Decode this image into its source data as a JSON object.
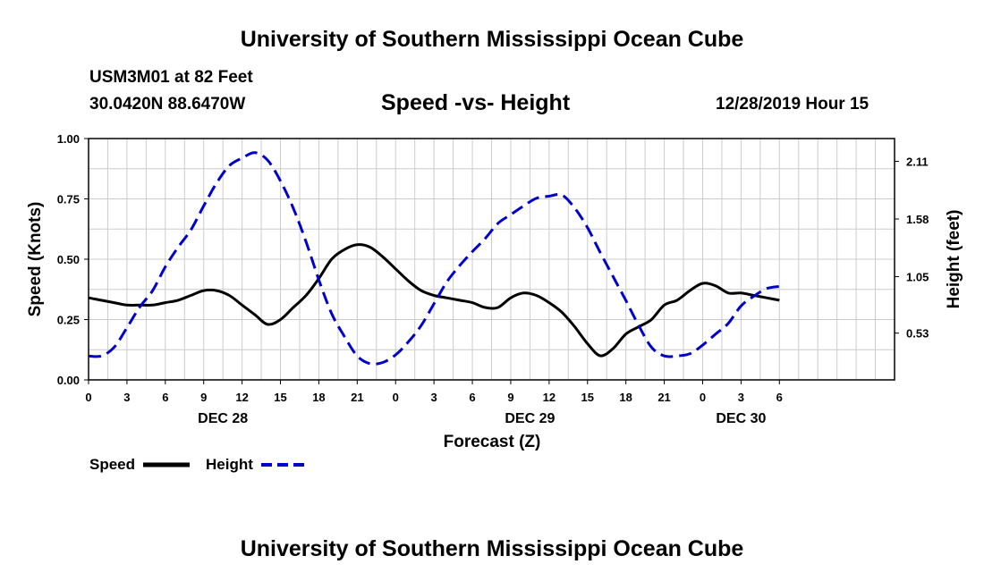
{
  "header": {
    "title_top": "University of Southern Mississippi Ocean Cube",
    "station": "USM3M01 at 82 Feet",
    "coordinates": "30.0420N 88.6470W",
    "chart_title": "Speed -vs- Height",
    "datetime": "12/28/2019 Hour 15"
  },
  "footer": {
    "title_bottom": "University of Southern Mississippi Ocean Cube"
  },
  "chart_data": {
    "type": "line",
    "title": "Speed -vs- Height",
    "xlabel": "Forecast (Z)",
    "ylabel": "Speed (Knots)",
    "y2label": "Height (feet)",
    "x_range": [
      0,
      63
    ],
    "ylim": [
      0,
      1.0
    ],
    "y2lim": [
      0.1,
      2.32
    ],
    "yticks": [
      "0.00",
      "0.25",
      "0.50",
      "0.75",
      "1.00"
    ],
    "y2ticks": [
      "0.53",
      "1.05",
      "1.58",
      "2.11"
    ],
    "xticks": [
      {
        "h": 0,
        "label": "0"
      },
      {
        "h": 3,
        "label": "3"
      },
      {
        "h": 6,
        "label": "6"
      },
      {
        "h": 9,
        "label": "9"
      },
      {
        "h": 12,
        "label": "12"
      },
      {
        "h": 15,
        "label": "15"
      },
      {
        "h": 18,
        "label": "18"
      },
      {
        "h": 21,
        "label": "21"
      },
      {
        "h": 24,
        "label": "0"
      },
      {
        "h": 27,
        "label": "3"
      },
      {
        "h": 30,
        "label": "6"
      },
      {
        "h": 33,
        "label": "9"
      },
      {
        "h": 36,
        "label": "12"
      },
      {
        "h": 39,
        "label": "15"
      },
      {
        "h": 42,
        "label": "18"
      },
      {
        "h": 45,
        "label": "21"
      },
      {
        "h": 48,
        "label": "0"
      },
      {
        "h": 51,
        "label": "3"
      },
      {
        "h": 54,
        "label": "6"
      }
    ],
    "date_labels": [
      {
        "h": 10.5,
        "label": "DEC 28"
      },
      {
        "h": 34.5,
        "label": "DEC 29"
      },
      {
        "h": 51,
        "label": "DEC 30"
      }
    ],
    "grid": true,
    "legend": "bottom-left",
    "series": [
      {
        "name": "Speed",
        "axis": "left",
        "color": "#000000",
        "dash": false,
        "x": [
          0,
          1,
          2,
          3,
          4,
          5,
          6,
          7,
          8,
          9,
          10,
          11,
          12,
          13,
          14,
          15,
          16,
          17,
          18,
          19,
          20,
          21,
          22,
          23,
          24,
          25,
          26,
          27,
          28,
          29,
          30,
          31,
          32,
          33,
          34,
          35,
          36,
          37,
          38,
          39,
          40,
          41,
          42,
          43,
          44,
          45,
          46,
          47,
          48,
          49,
          50,
          51,
          52,
          53,
          54
        ],
        "values": [
          0.34,
          0.33,
          0.32,
          0.31,
          0.31,
          0.31,
          0.32,
          0.33,
          0.35,
          0.37,
          0.37,
          0.35,
          0.31,
          0.27,
          0.23,
          0.25,
          0.3,
          0.35,
          0.42,
          0.5,
          0.54,
          0.56,
          0.55,
          0.51,
          0.46,
          0.41,
          0.37,
          0.35,
          0.34,
          0.33,
          0.32,
          0.3,
          0.3,
          0.34,
          0.36,
          0.35,
          0.32,
          0.28,
          0.22,
          0.15,
          0.1,
          0.13,
          0.19,
          0.22,
          0.25,
          0.31,
          0.33,
          0.37,
          0.4,
          0.39,
          0.36,
          0.36,
          0.35,
          0.34,
          0.33
        ]
      },
      {
        "name": "Height",
        "axis": "right",
        "color": "#0000cc",
        "dash": true,
        "x": [
          0,
          1,
          2,
          3,
          4,
          5,
          6,
          7,
          8,
          9,
          10,
          11,
          12,
          13,
          14,
          15,
          16,
          17,
          18,
          19,
          20,
          21,
          22,
          23,
          24,
          25,
          26,
          27,
          28,
          29,
          30,
          31,
          32,
          33,
          34,
          35,
          36,
          37,
          38,
          39,
          40,
          41,
          42,
          43,
          44,
          45,
          46,
          47,
          48,
          49,
          50,
          51,
          52,
          53,
          54
        ],
        "values": [
          0.32,
          0.32,
          0.4,
          0.58,
          0.77,
          0.92,
          1.14,
          1.32,
          1.48,
          1.7,
          1.91,
          2.07,
          2.14,
          2.19,
          2.12,
          1.93,
          1.68,
          1.37,
          1.02,
          0.71,
          0.5,
          0.32,
          0.25,
          0.26,
          0.33,
          0.45,
          0.6,
          0.8,
          1.0,
          1.15,
          1.28,
          1.4,
          1.54,
          1.62,
          1.7,
          1.77,
          1.79,
          1.8,
          1.68,
          1.5,
          1.27,
          1.05,
          0.83,
          0.6,
          0.4,
          0.32,
          0.32,
          0.34,
          0.42,
          0.52,
          0.62,
          0.78,
          0.87,
          0.94,
          0.96
        ]
      }
    ]
  }
}
